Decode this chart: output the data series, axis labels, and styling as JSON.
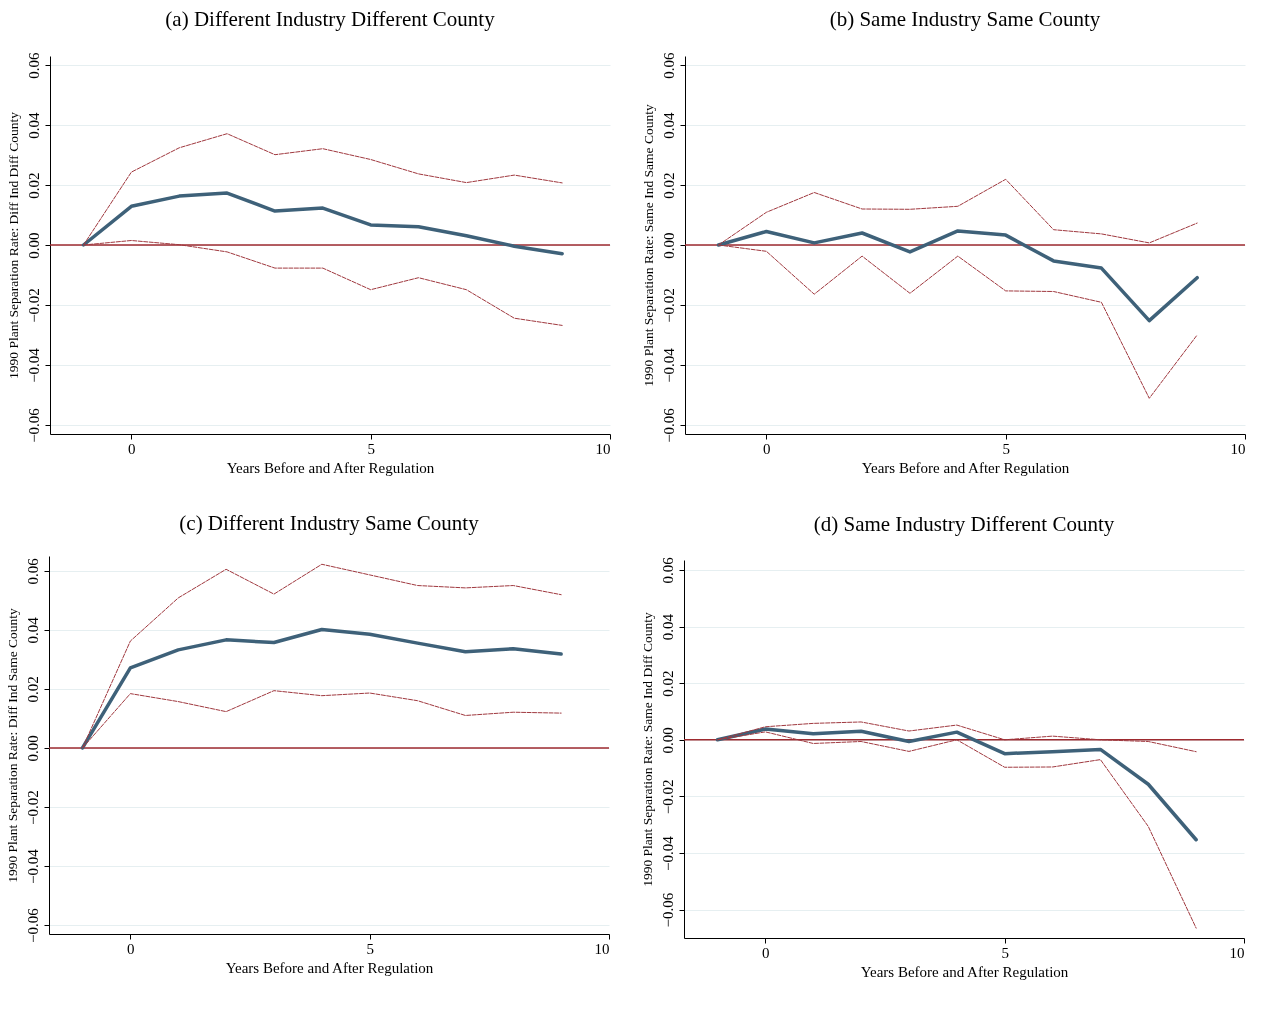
{
  "chart_data": [
    {
      "type": "line",
      "title": "(a) Different Industry Different County",
      "xlabel": "Years Before and After Regulation",
      "ylabel": "1990 Plant Separation Rate: Diff Ind Diff County",
      "x": [
        -1,
        0,
        1,
        2,
        3,
        4,
        5,
        6,
        7,
        8,
        9
      ],
      "xlim": [
        -1.7,
        10
      ],
      "xticks": [
        0,
        5,
        10
      ],
      "ylim": [
        -0.063,
        0.063
      ],
      "yticks": [
        {
          "value": -0.06,
          "label": "−0.06"
        },
        {
          "value": -0.04,
          "label": "−0.04"
        },
        {
          "value": -0.02,
          "label": "−0.02"
        },
        {
          "value": 0,
          "label": "0.00"
        },
        0.02,
        0.04,
        0.06
      ],
      "grid": "y",
      "ref_lines": [
        {
          "axis": "y",
          "value": 0,
          "color": "#9e2a2f"
        }
      ],
      "series": [
        {
          "color": "#3e6179",
          "line_style": "solid",
          "values": [
            0,
            0.0129,
            0.0163,
            0.0173,
            0.0113,
            0.0123,
            0.0067,
            0.0061,
            0.0031,
            -0.0004,
            -0.0029
          ]
        },
        {
          "color": "#a0393f",
          "line_style": "dashed",
          "values": [
            0,
            0.0243,
            0.0324,
            0.0371,
            0.0301,
            0.0321,
            0.0285,
            0.0237,
            0.0208,
            0.0233,
            0.0207
          ]
        },
        {
          "color": "#a0393f",
          "line_style": "dashed",
          "values": [
            0,
            0.0015,
            0.0001,
            -0.0023,
            -0.0077,
            -0.0077,
            -0.0149,
            -0.0109,
            -0.0149,
            -0.0244,
            -0.0268
          ]
        }
      ]
    },
    {
      "type": "line",
      "title": "(b) Same Industry Same County",
      "xlabel": "Years Before and After Regulation",
      "ylabel": "1990 Plant Separation Rate: Same Ind Same County",
      "x": [
        -1,
        0,
        1,
        2,
        3,
        4,
        5,
        6,
        7,
        8,
        9
      ],
      "xlim": [
        -1.7,
        10
      ],
      "xticks": [
        0,
        5,
        10
      ],
      "ylim": [
        -0.063,
        0.063
      ],
      "yticks": [
        {
          "value": -0.06,
          "label": "−0.06"
        },
        {
          "value": -0.04,
          "label": "−0.04"
        },
        {
          "value": -0.02,
          "label": "−0.02"
        },
        {
          "value": 0,
          "label": "0.00"
        },
        0.02,
        0.04,
        0.06
      ],
      "grid": "y",
      "ref_lines": [
        {
          "axis": "y",
          "value": 0,
          "color": "#9e2a2f"
        }
      ],
      "series": [
        {
          "color": "#3e6179",
          "line_style": "solid",
          "values": [
            0,
            0.0045,
            0.0007,
            0.004,
            -0.0023,
            0.0047,
            0.0033,
            -0.0053,
            -0.0077,
            -0.0252,
            -0.0109
          ]
        },
        {
          "color": "#a0393f",
          "line_style": "dashed",
          "values": [
            0,
            0.0109,
            0.0175,
            0.012,
            0.0119,
            0.0129,
            0.0219,
            0.0051,
            0.0037,
            0.0007,
            0.0073
          ]
        },
        {
          "color": "#a0393f",
          "line_style": "dashed",
          "values": [
            0,
            -0.0021,
            -0.0164,
            -0.0037,
            -0.0161,
            -0.0037,
            -0.0153,
            -0.0155,
            -0.0191,
            -0.0511,
            -0.03
          ]
        }
      ]
    },
    {
      "type": "line",
      "title": "(c) Different Industry Same County",
      "xlabel": "Years Before and After Regulation",
      "ylabel": "1990 Plant Separation Rate: Diff Ind Same County",
      "x": [
        -1,
        0,
        1,
        2,
        3,
        4,
        5,
        6,
        7,
        8,
        9
      ],
      "xlim": [
        -1.7,
        10
      ],
      "xticks": [
        0,
        5,
        10
      ],
      "ylim": [
        -0.063,
        0.065
      ],
      "yticks": [
        {
          "value": -0.06,
          "label": "−0.06"
        },
        {
          "value": -0.04,
          "label": "−0.04"
        },
        {
          "value": -0.02,
          "label": "−0.02"
        },
        {
          "value": 0,
          "label": "0.00"
        },
        0.02,
        0.04,
        0.06
      ],
      "grid": "y",
      "ref_lines": [
        {
          "axis": "y",
          "value": 0,
          "color": "#9e2a2f"
        }
      ],
      "series": [
        {
          "color": "#3e6179",
          "line_style": "solid",
          "values": [
            0,
            0.0271,
            0.0332,
            0.0366,
            0.0357,
            0.0401,
            0.0385,
            0.0355,
            0.0326,
            0.0336,
            0.0318
          ]
        },
        {
          "color": "#a0393f",
          "line_style": "dashed",
          "values": [
            0,
            0.0362,
            0.0508,
            0.0605,
            0.0521,
            0.0622,
            0.0586,
            0.055,
            0.0542,
            0.055,
            0.0519
          ]
        },
        {
          "color": "#a0393f",
          "line_style": "dashed",
          "values": [
            0,
            0.0184,
            0.0157,
            0.0123,
            0.0194,
            0.0177,
            0.0186,
            0.016,
            0.011,
            0.0121,
            0.0118
          ]
        }
      ]
    },
    {
      "type": "line",
      "title": "(d) Same Industry Different County",
      "xlabel": "Years Before and After Regulation",
      "ylabel": "1990 Plant Separation Rate: Same Ind Diff County",
      "x": [
        -1,
        0,
        1,
        2,
        3,
        4,
        5,
        6,
        7,
        8,
        9
      ],
      "xlim": [
        -1.7,
        10
      ],
      "xticks": [
        0,
        5,
        10
      ],
      "ylim": [
        -0.07,
        0.0635
      ],
      "yticks": [
        {
          "value": -0.06,
          "label": "−0.06"
        },
        {
          "value": -0.04,
          "label": "−0.04"
        },
        {
          "value": -0.02,
          "label": "−0.02"
        },
        {
          "value": 0,
          "label": "0.00"
        },
        0.02,
        0.04,
        0.06
      ],
      "grid": "y",
      "ref_lines": [
        {
          "axis": "y",
          "value": 0,
          "color": "#9e2a2f"
        }
      ],
      "series": [
        {
          "color": "#3e6179",
          "line_style": "solid",
          "values": [
            0,
            0.0038,
            0.0021,
            0.003,
            -0.0006,
            0.0027,
            -0.0049,
            -0.0042,
            -0.0034,
            -0.0157,
            -0.0353
          ]
        },
        {
          "color": "#a0393f",
          "line_style": "dashed",
          "values": [
            0,
            0.0046,
            0.0058,
            0.0063,
            0.0031,
            0.0052,
            0,
            0.0013,
            0,
            -0.0006,
            -0.0042
          ]
        },
        {
          "color": "#a0393f",
          "line_style": "dashed",
          "values": [
            0,
            0.0028,
            -0.0013,
            -0.0006,
            -0.0041,
            0,
            -0.0097,
            -0.0096,
            -0.007,
            -0.0306,
            -0.0665
          ]
        }
      ]
    }
  ]
}
